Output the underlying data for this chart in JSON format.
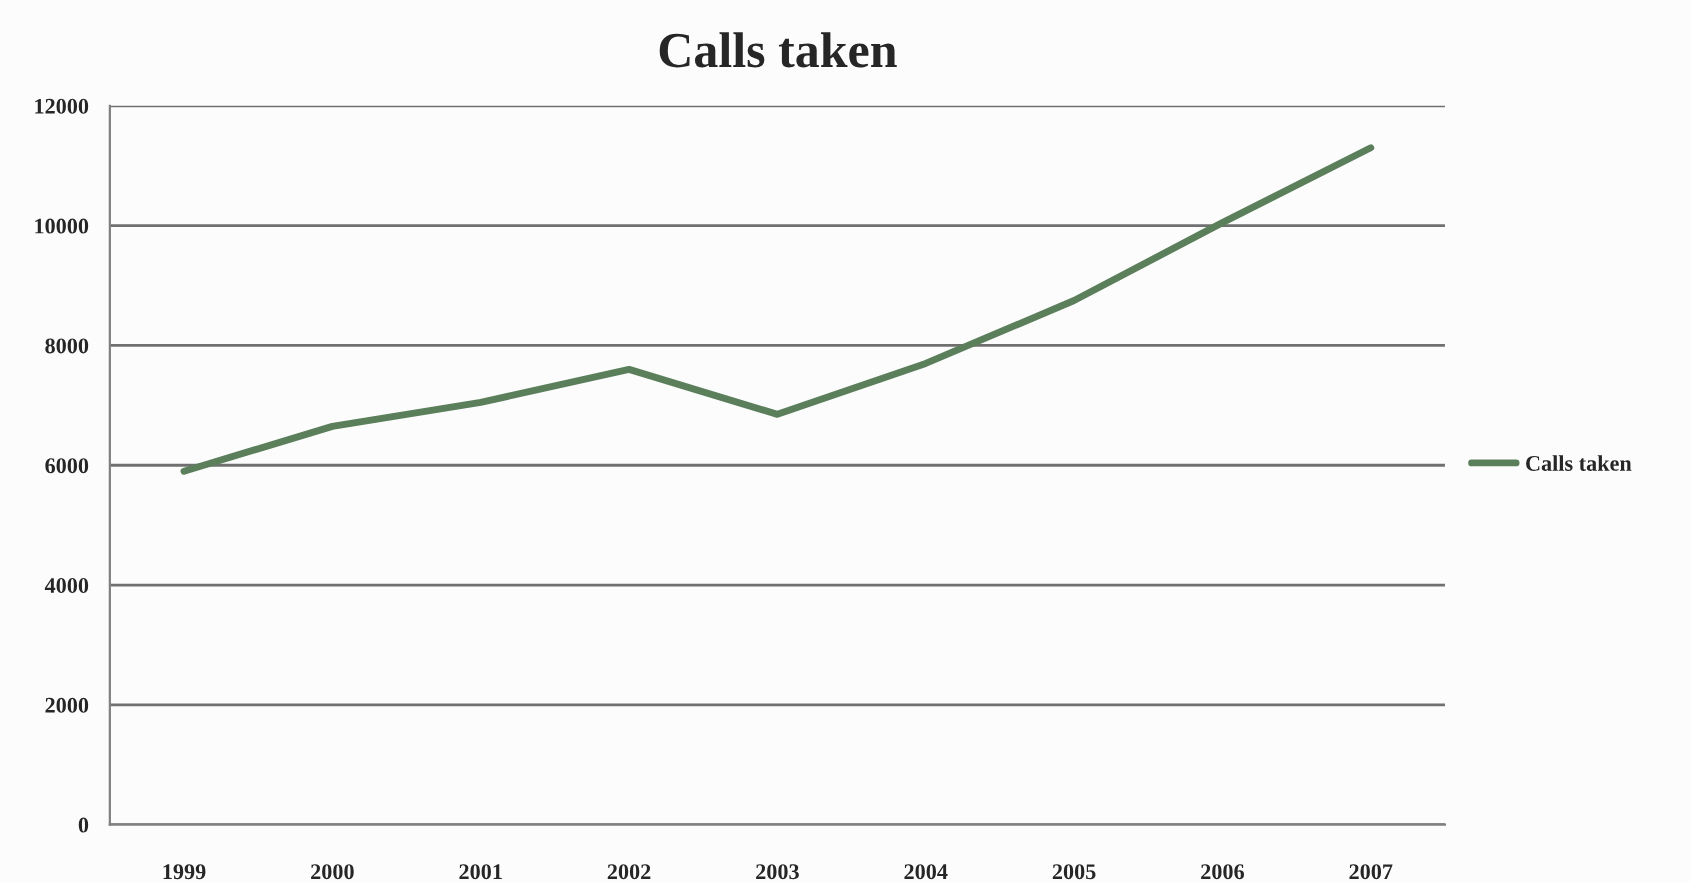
{
  "chart_data": {
    "type": "line",
    "title": "Calls taken",
    "categories": [
      "1999",
      "2000",
      "2001",
      "2002",
      "2003",
      "2004",
      "2005",
      "2006",
      "2007"
    ],
    "series": [
      {
        "name": "Calls taken",
        "color": "#5b7f5b",
        "values": [
          5900,
          6650,
          7050,
          7600,
          6850,
          7700,
          8750,
          10050,
          11300
        ]
      }
    ],
    "ylim": [
      0,
      12000
    ],
    "yticks": [
      0,
      2000,
      4000,
      6000,
      8000,
      10000,
      12000
    ],
    "grid": "y",
    "legend": "right",
    "marker": "none",
    "line_style": "solid"
  }
}
